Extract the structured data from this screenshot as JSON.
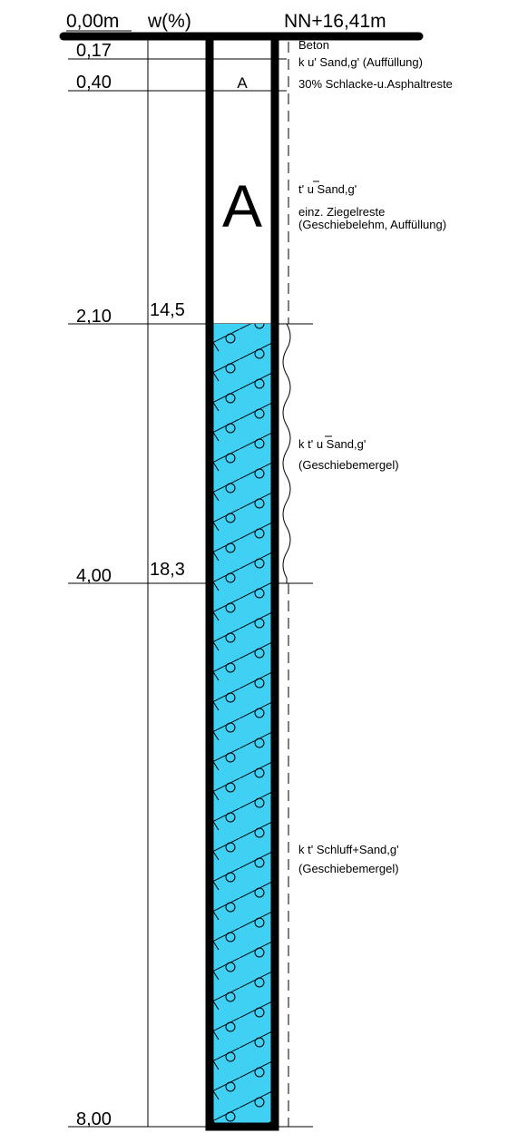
{
  "header": {
    "depth_origin": "0,00m",
    "water_content_heading": "w(%)",
    "elevation": "NN+16,41m"
  },
  "depth_labels": [
    "0,17",
    "0,40",
    "2,10",
    "4,00",
    "8,00"
  ],
  "water_contents": [
    {
      "depth": "2,10",
      "value": "14,5"
    },
    {
      "depth": "4,00",
      "value": "18,3"
    }
  ],
  "layers": [
    {
      "top": 0.0,
      "bottom": 0.17,
      "symbol": "",
      "fill": "#ffffff",
      "description": [
        "Beton"
      ]
    },
    {
      "top": 0.17,
      "bottom": 0.4,
      "symbol": "",
      "fill": "#ffffff",
      "description": [
        "k u' Sand,g' (Auffüllung)"
      ]
    },
    {
      "top": 0.4,
      "bottom": 0.4,
      "symbol": "A",
      "fill": "#ffffff",
      "description": [
        "30% Schlacke-u.Asphaltreste"
      ]
    },
    {
      "top": 0.4,
      "bottom": 2.1,
      "symbol": "A",
      "fill": "#ffffff",
      "description": [
        "t' u Sand,g'",
        "einz. Ziegelreste",
        "(Geschiebelehm, Auffüllung)"
      ]
    },
    {
      "top": 2.1,
      "bottom": 4.0,
      "symbol": "",
      "fill": "#3fd0f4",
      "description": [
        "k t' u Sand,g'",
        "(Geschiebemergel)"
      ]
    },
    {
      "top": 4.0,
      "bottom": 8.0,
      "symbol": "",
      "fill": "#3fd0f4",
      "description": [
        "k t' Schluff+Sand,g'",
        "(Geschiebemergel)"
      ]
    }
  ],
  "colors": {
    "marl_fill": "#3fd0f4",
    "line": "#000000"
  }
}
